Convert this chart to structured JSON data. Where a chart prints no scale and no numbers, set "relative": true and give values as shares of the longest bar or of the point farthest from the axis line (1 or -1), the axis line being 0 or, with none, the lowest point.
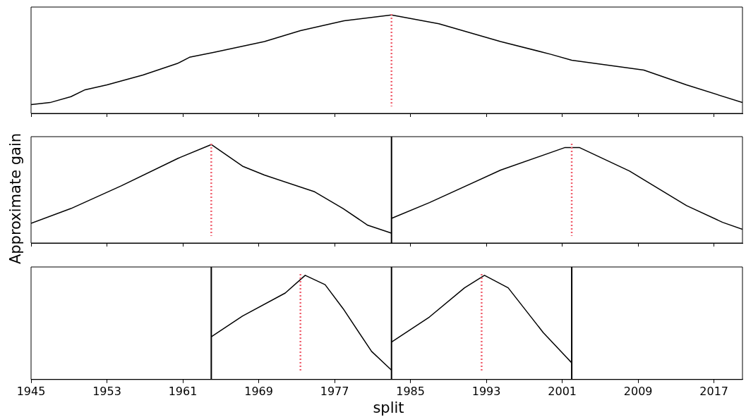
{
  "chart_data": [
    {
      "type": "line",
      "relative": true,
      "xlim": [
        1945,
        2020
      ],
      "xticks": [
        1945,
        1953,
        1961,
        1969,
        1977,
        1985,
        1993,
        2001,
        2009,
        2017
      ],
      "tick_labels": false,
      "grid": false,
      "legend": false,
      "marker": "none",
      "line_style": "solid",
      "series": [
        {
          "color": "#000000",
          "x": [
            1945,
            1947,
            1949.2,
            1950.7,
            1953,
            1956.8,
            1960.5,
            1961.7,
            1964.3,
            1969.6,
            1973.4,
            1978,
            1983,
            1988,
            1994.5,
            1999.8,
            2002,
            2007.3,
            2009.6,
            2014.1,
            2020
          ],
          "values": [
            0.09,
            0.11,
            0.17,
            0.24,
            0.29,
            0.39,
            0.51,
            0.57,
            0.62,
            0.73,
            0.84,
            0.94,
            1.0,
            0.91,
            0.73,
            0.6,
            0.54,
            0.47,
            0.44,
            0.29,
            0.11
          ]
        }
      ],
      "ref_lines": [
        {
          "axis": "x",
          "value": 1983,
          "color": "#f0606e",
          "line_style": "dotted"
        }
      ]
    },
    {
      "type": "line",
      "relative": true,
      "xlim": [
        1945,
        2020
      ],
      "xticks": [
        1945,
        1953,
        1961,
        1969,
        1977,
        1985,
        1993,
        2001,
        2009,
        2017
      ],
      "tick_labels": false,
      "grid": false,
      "legend": false,
      "marker": "none",
      "line_style": "solid",
      "ylabel": "Approximate gain",
      "series": [
        {
          "color": "#000000",
          "x": [
            1945,
            1949.2,
            1954.5,
            1960.5,
            1964,
            1967.3,
            1969.6,
            1974.9,
            1977.9,
            1980.5,
            1983
          ],
          "values": [
            0.2,
            0.35,
            0.58,
            0.86,
            1.0,
            0.78,
            0.69,
            0.52,
            0.35,
            0.18,
            0.1
          ]
        },
        {
          "color": "#000000",
          "x": [
            1983,
            1987,
            1994.5,
            2001.3,
            2002.8,
            2008.1,
            2014.1,
            2017.9,
            2020
          ],
          "values": [
            0.25,
            0.41,
            0.74,
            0.97,
            0.97,
            0.73,
            0.38,
            0.21,
            0.14
          ]
        }
      ],
      "ref_lines": [
        {
          "axis": "x",
          "value": 1964,
          "color": "#f0606e",
          "line_style": "dotted"
        },
        {
          "axis": "x",
          "value": 1983,
          "color": "#000000",
          "line_style": "solid"
        },
        {
          "axis": "x",
          "value": 2002,
          "color": "#f0606e",
          "line_style": "dotted"
        }
      ]
    },
    {
      "type": "line",
      "relative": true,
      "xlim": [
        1945,
        2020
      ],
      "xticks": [
        1945,
        1953,
        1961,
        1969,
        1977,
        1985,
        1993,
        2001,
        2009,
        2017
      ],
      "tick_labels": "x",
      "grid": false,
      "legend": false,
      "marker": "none",
      "line_style": "solid",
      "xlabel": "split",
      "series": [
        {
          "color": "#000000",
          "x": [
            1964,
            1967.3,
            1971.8,
            1973.9,
            1976,
            1977.9,
            1980.9,
            1983
          ],
          "values": [
            0.41,
            0.61,
            0.83,
            1.0,
            0.91,
            0.68,
            0.27,
            0.09
          ]
        },
        {
          "color": "#000000",
          "x": [
            1983,
            1987,
            1990.7,
            1992.8,
            1995.3,
            1999,
            2002
          ],
          "values": [
            0.36,
            0.6,
            0.88,
            1.0,
            0.88,
            0.45,
            0.16
          ]
        }
      ],
      "ref_lines": [
        {
          "axis": "x",
          "value": 1964,
          "color": "#000000",
          "line_style": "solid"
        },
        {
          "axis": "x",
          "value": 1973.4,
          "color": "#f0606e",
          "line_style": "dotted"
        },
        {
          "axis": "x",
          "value": 1983,
          "color": "#000000",
          "line_style": "solid"
        },
        {
          "axis": "x",
          "value": 1992.5,
          "color": "#f0606e",
          "line_style": "dotted"
        },
        {
          "axis": "x",
          "value": 2002,
          "color": "#000000",
          "line_style": "solid"
        }
      ]
    }
  ]
}
